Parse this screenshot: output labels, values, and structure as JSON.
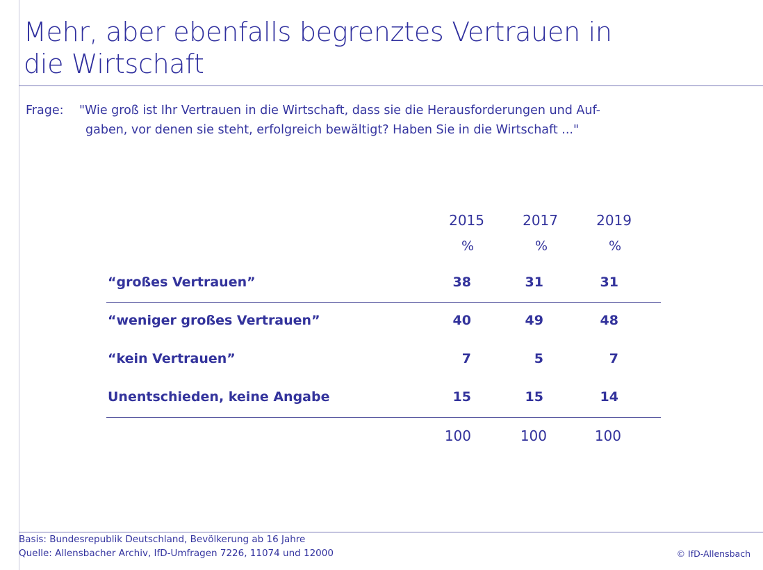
{
  "header": {
    "title_lines": [
      "Mehr, aber ebenfalls begrenztes Vertrauen in",
      "die Wirtschaft"
    ]
  },
  "question": {
    "label": "Frage:",
    "lines": [
      "\"Wie groß ist Ihr Vertrauen in die Wirtschaft, dass sie die Herausforderungen und Auf-",
      "gaben, vor denen sie steht, erfolgreich bewältigt? Haben Sie in die Wirtschaft ...\""
    ]
  },
  "table": {
    "years": [
      "2015",
      "2017",
      "2019"
    ],
    "units": [
      "%",
      "%",
      "%"
    ],
    "rows": [
      {
        "label": "“großes Vertrauen”",
        "values": [
          38,
          31,
          31
        ]
      },
      {
        "label": "“weniger großes Vertrauen”",
        "values": [
          40,
          49,
          48
        ]
      },
      {
        "label": "“kein Vertrauen”",
        "values": [
          7,
          5,
          7
        ]
      },
      {
        "label": "Unentschieden, keine Angabe",
        "values": [
          15,
          15,
          14
        ]
      }
    ],
    "totals": [
      100,
      100,
      100
    ]
  },
  "footer": {
    "lines": [
      "Basis: Bundesrepublik Deutschland, Bevölkerung ab 16 Jahre",
      "Quelle: Allensbacher Archiv, IfD-Umfragen 7226, 11074 und 12000"
    ],
    "copyright": "© IfD-Allensbach"
  }
}
